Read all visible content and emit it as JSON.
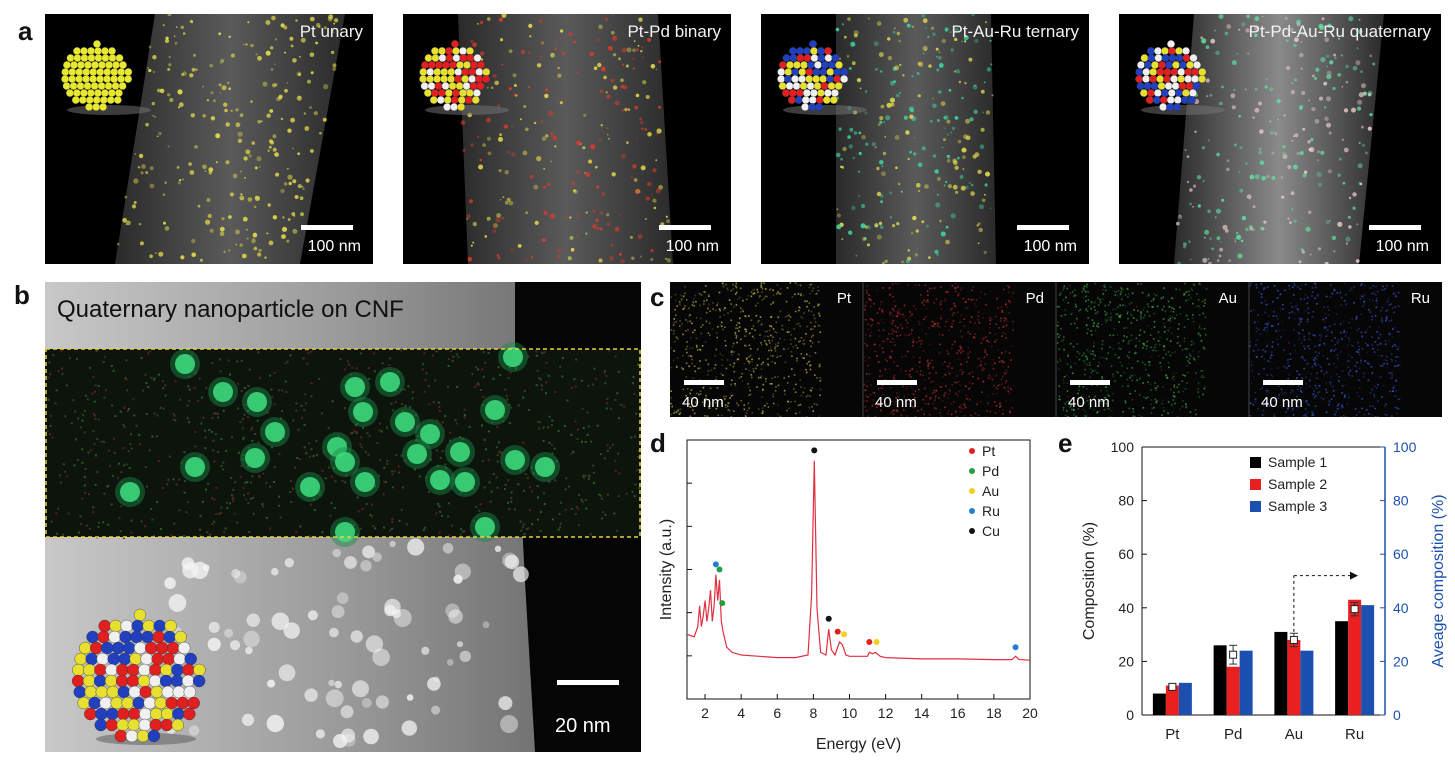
{
  "panel_labels": {
    "a": "a",
    "b": "b",
    "c": "c",
    "d": "d",
    "e": "e"
  },
  "panel_a": {
    "images": [
      {
        "title": "Pt unary",
        "scale": "100 nm",
        "colors": [
          "#e8e04a"
        ]
      },
      {
        "title": "Pt-Pd binary",
        "scale": "100 nm",
        "colors": [
          "#e03a2a",
          "#e8e04a"
        ]
      },
      {
        "title": "Pt-Au-Ru ternary",
        "scale": "100 nm",
        "colors": [
          "#3fd8a0",
          "#e8e04a"
        ]
      },
      {
        "title": "Pt-Pd-Au-Ru quaternary",
        "scale": "100 nm",
        "colors": [
          "#5fe0a0",
          "#e8c8c8"
        ]
      }
    ]
  },
  "panel_b": {
    "title": "Quaternary nanoparticle on CNF",
    "scale": "20 nm",
    "box_color": "#e8d23a"
  },
  "panel_c": {
    "maps": [
      {
        "element": "Pt",
        "scale": "40 nm",
        "color": "#c8c050"
      },
      {
        "element": "Pd",
        "scale": "40 nm",
        "color": "#c83030"
      },
      {
        "element": "Au",
        "scale": "40 nm",
        "color": "#3fb04a"
      },
      {
        "element": "Ru",
        "scale": "40 nm",
        "color": "#3a5fe0"
      }
    ]
  },
  "chart_data": [
    {
      "type": "line",
      "panel": "d",
      "xlabel": "Energy (eV)",
      "ylabel": "Intensity (a.u.)",
      "xlim": [
        1,
        20
      ],
      "xticks": [
        2,
        4,
        6,
        8,
        10,
        12,
        14,
        16,
        18,
        20
      ],
      "line_color": "#e03040",
      "x": [
        1.0,
        1.4,
        1.6,
        1.7,
        1.8,
        1.9,
        2.0,
        2.1,
        2.2,
        2.3,
        2.4,
        2.5,
        2.6,
        2.7,
        2.8,
        2.9,
        3.0,
        3.2,
        3.5,
        4.0,
        5.0,
        6.0,
        7.0,
        7.7,
        7.9,
        8.05,
        8.2,
        8.4,
        8.7,
        8.85,
        9.0,
        9.2,
        9.45,
        9.6,
        9.8,
        10.0,
        11.0,
        11.1,
        11.3,
        11.45,
        11.7,
        12.0,
        14.0,
        16.0,
        18.0,
        19.0,
        19.2,
        19.4,
        20.0
      ],
      "y": [
        0.25,
        0.24,
        0.28,
        0.36,
        0.28,
        0.32,
        0.38,
        0.3,
        0.35,
        0.42,
        0.3,
        0.36,
        0.48,
        0.38,
        0.46,
        0.3,
        0.26,
        0.2,
        0.18,
        0.17,
        0.165,
        0.16,
        0.16,
        0.17,
        0.4,
        0.92,
        0.35,
        0.18,
        0.17,
        0.27,
        0.19,
        0.17,
        0.22,
        0.21,
        0.17,
        0.165,
        0.165,
        0.18,
        0.175,
        0.18,
        0.165,
        0.16,
        0.155,
        0.155,
        0.152,
        0.152,
        0.165,
        0.152,
        0.15
      ],
      "legend": [
        {
          "label": "Pt",
          "color": "#e02020"
        },
        {
          "label": "Pd",
          "color": "#20a040"
        },
        {
          "label": "Au",
          "color": "#f0d020"
        },
        {
          "label": "Ru",
          "color": "#2080d0"
        },
        {
          "label": "Cu",
          "color": "#111111"
        }
      ],
      "markers": [
        {
          "x": 8.05,
          "y": 0.96,
          "color": "#111111"
        },
        {
          "x": 8.85,
          "y": 0.31,
          "color": "#111111"
        },
        {
          "x": 2.6,
          "y": 0.52,
          "color": "#2080d0"
        },
        {
          "x": 2.8,
          "y": 0.5,
          "color": "#20a040"
        },
        {
          "x": 2.95,
          "y": 0.37,
          "color": "#20a040"
        },
        {
          "x": 9.35,
          "y": 0.26,
          "color": "#e02020"
        },
        {
          "x": 9.7,
          "y": 0.25,
          "color": "#f0d020"
        },
        {
          "x": 11.1,
          "y": 0.22,
          "color": "#e02020"
        },
        {
          "x": 11.5,
          "y": 0.22,
          "color": "#f0d020"
        },
        {
          "x": 19.2,
          "y": 0.2,
          "color": "#2080d0"
        }
      ],
      "legend_position": "top-right"
    },
    {
      "type": "bar",
      "panel": "e",
      "categories": [
        "Pt",
        "Pd",
        "Au",
        "Ru"
      ],
      "series": [
        {
          "name": "Sample 1",
          "values": [
            8,
            26,
            31,
            35
          ],
          "color": "#000000"
        },
        {
          "name": "Sample 2",
          "values": [
            11,
            18,
            28,
            43
          ],
          "color": "#e82020"
        },
        {
          "name": "Sample 3",
          "values": [
            12,
            24,
            24,
            41
          ],
          "color": "#1c50b0"
        }
      ],
      "average": [
        10.5,
        22.5,
        28,
        39.5
      ],
      "average_error": [
        1,
        3.5,
        2.5,
        2.5
      ],
      "ylabel": "Composition (%)",
      "y2label": "Aveage composition (%)",
      "ylim": [
        0,
        100
      ],
      "yticks": [
        0,
        20,
        40,
        60,
        80,
        100
      ],
      "y2ticks": [
        0,
        20,
        40,
        60,
        80,
        100
      ],
      "y2_color": "#1c50b0",
      "legend_position": "top-right"
    }
  ]
}
